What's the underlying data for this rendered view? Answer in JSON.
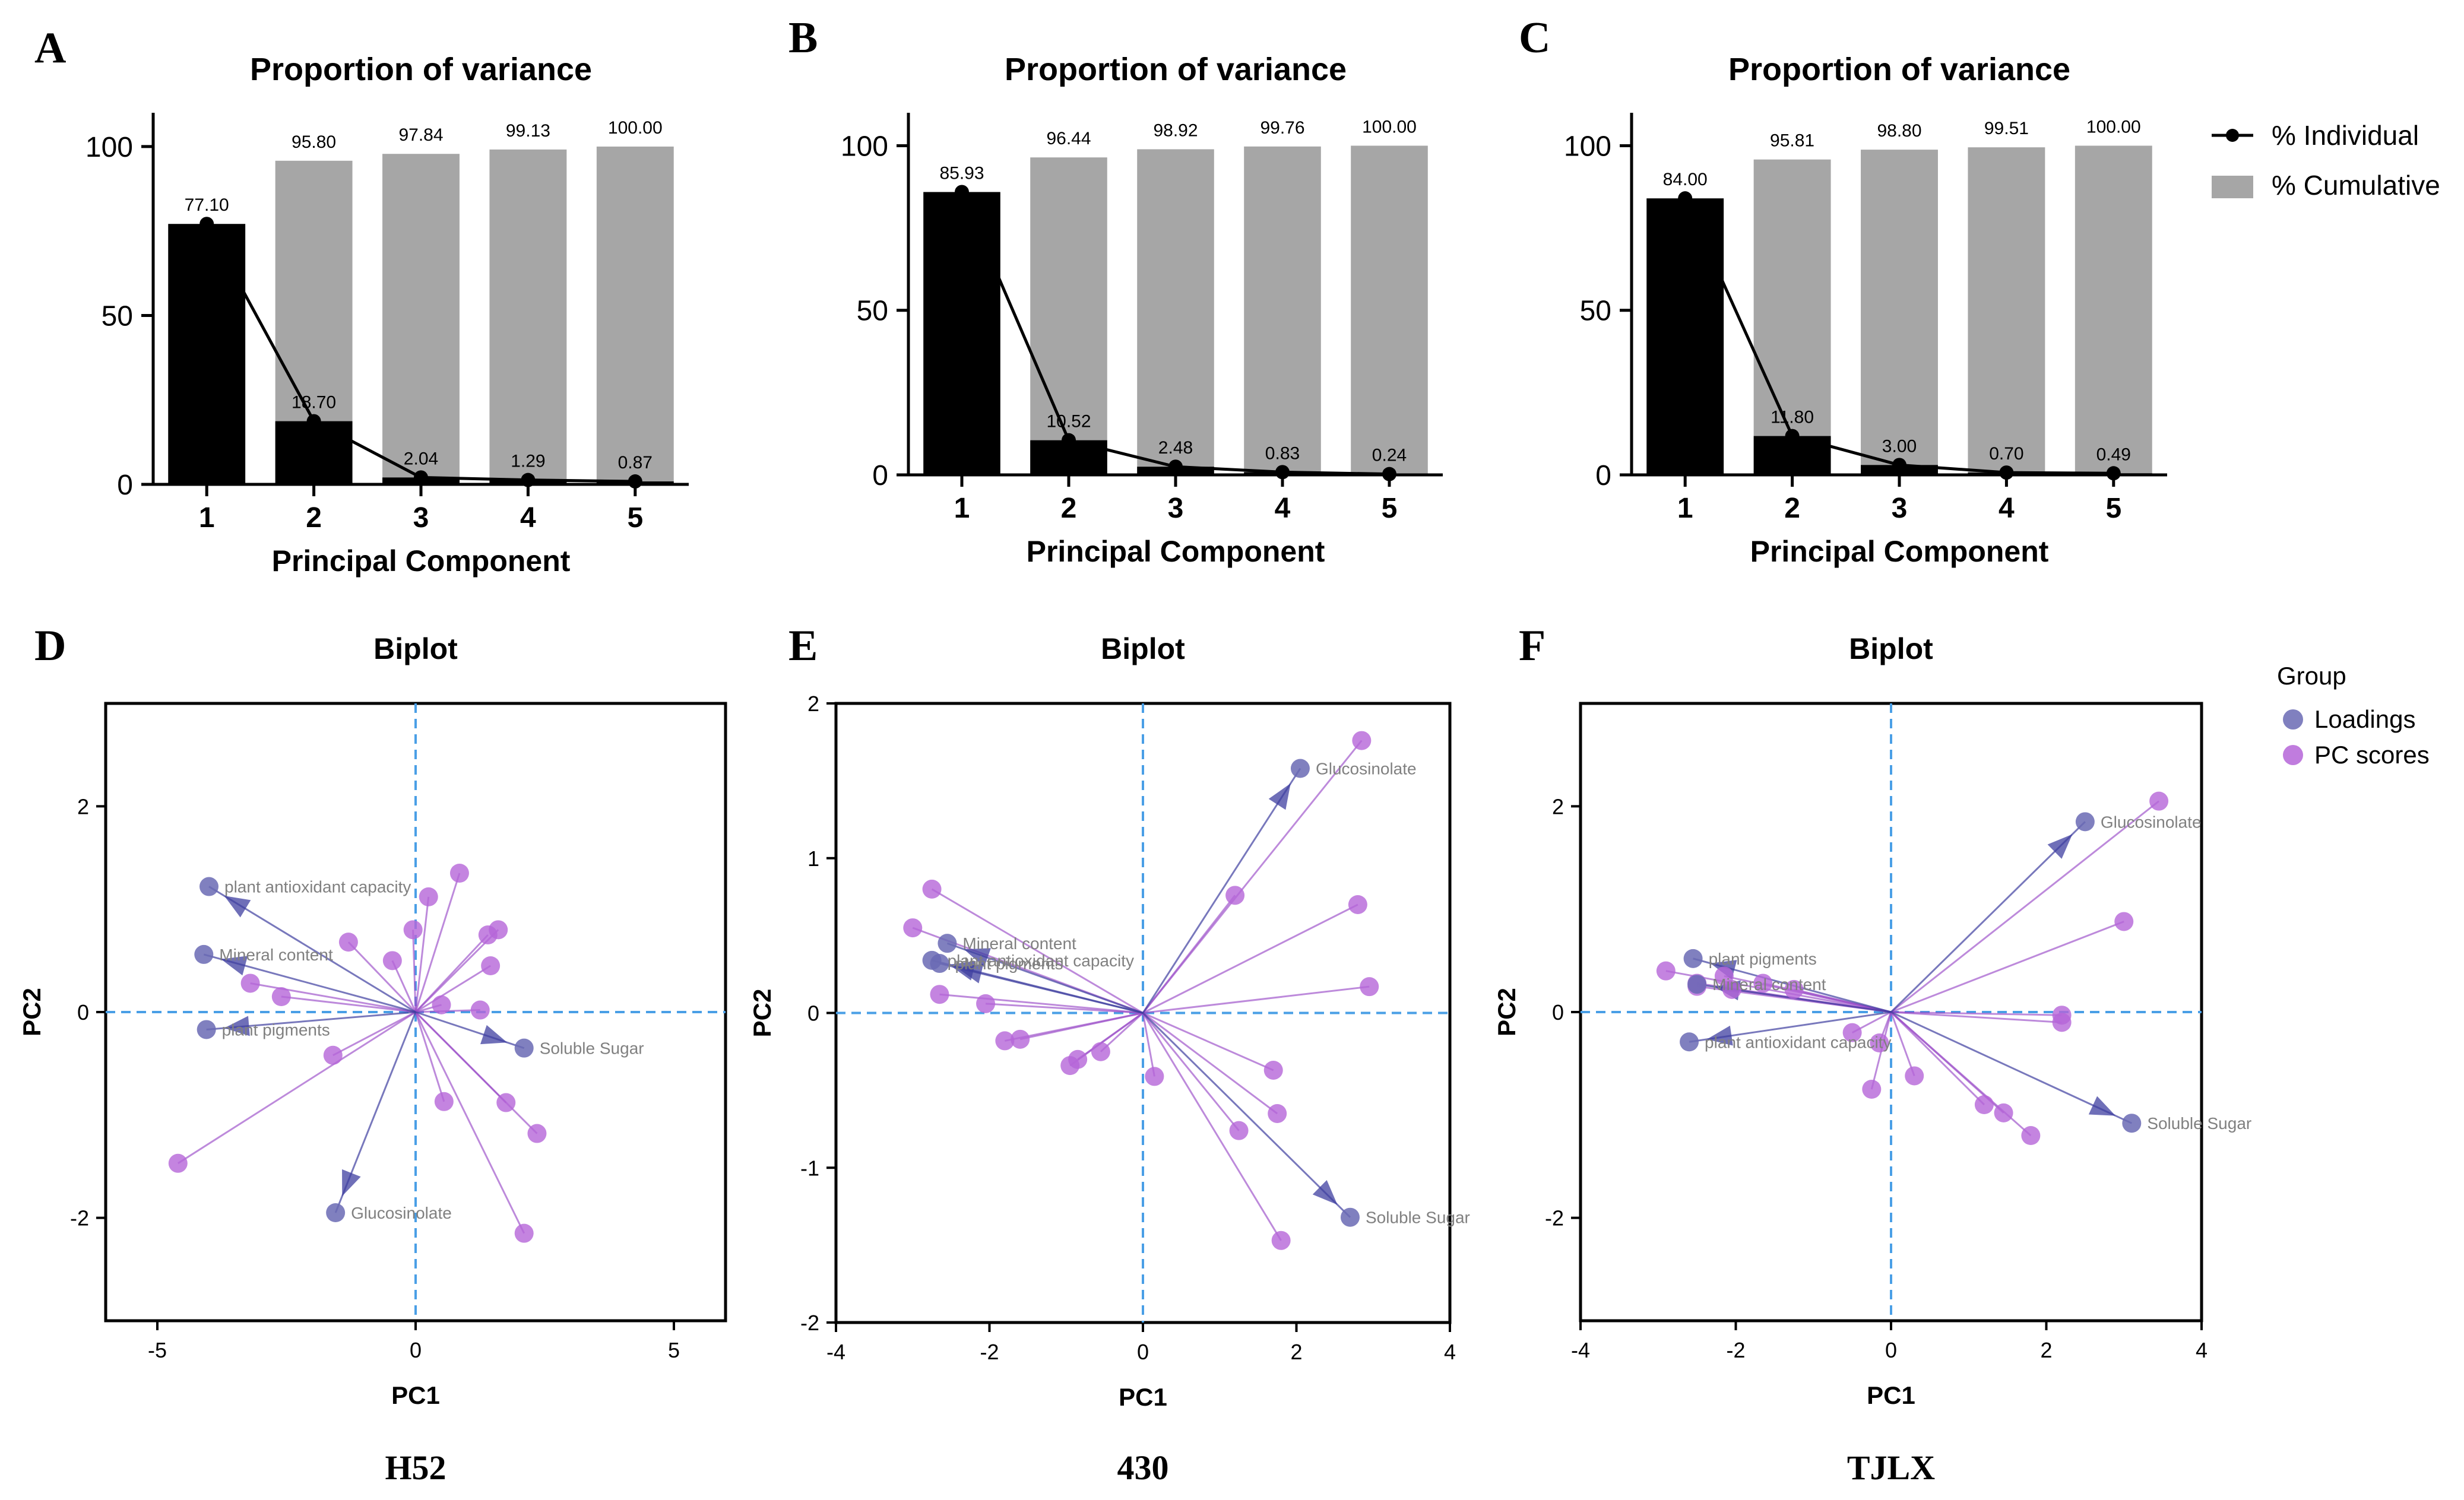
{
  "colors": {
    "bar_individual": "#000000",
    "bar_cumulative": "#a6a6a6",
    "loading": "#6a6ab4",
    "loading_arrow": "#3f3fa0",
    "score": "#b565d8",
    "score_line": "#9a4cc8",
    "zero_line": "#4a9fe6",
    "label_gray": "#808080"
  },
  "legend_variance": {
    "individual": "% Individual",
    "cumulative": "% Cumulative"
  },
  "legend_biplot": {
    "title": "Group",
    "loadings": "Loadings",
    "scores": "PC scores"
  },
  "chart_data": [
    {
      "panel": "A",
      "type": "bar",
      "title": "Proportion of variance",
      "xlabel": "Principal Component",
      "ylabel": "",
      "categories": [
        "1",
        "2",
        "3",
        "4",
        "5"
      ],
      "ylim": [
        0,
        110
      ],
      "yticks": [
        0,
        50,
        100
      ],
      "series": [
        {
          "name": "% Individual",
          "values": [
            77.1,
            18.7,
            2.04,
            1.29,
            0.87
          ],
          "labels": [
            "77.10",
            "18.70",
            "2.04",
            "1.29",
            "0.87"
          ]
        },
        {
          "name": "% Cumulative",
          "values": [
            77.1,
            95.8,
            97.84,
            99.13,
            100.0
          ],
          "labels": [
            "",
            "95.80",
            "97.84",
            "99.13",
            "100.00"
          ]
        }
      ]
    },
    {
      "panel": "B",
      "type": "bar",
      "title": "Proportion of variance",
      "xlabel": "Principal Component",
      "ylabel": "",
      "categories": [
        "1",
        "2",
        "3",
        "4",
        "5"
      ],
      "ylim": [
        0,
        110
      ],
      "yticks": [
        0,
        50,
        100
      ],
      "series": [
        {
          "name": "% Individual",
          "values": [
            85.93,
            10.52,
            2.48,
            0.83,
            0.24
          ],
          "labels": [
            "85.93",
            "10.52",
            "2.48",
            "0.83",
            "0.24"
          ]
        },
        {
          "name": "% Cumulative",
          "values": [
            85.93,
            96.44,
            98.92,
            99.76,
            100.0
          ],
          "labels": [
            "",
            "96.44",
            "98.92",
            "99.76",
            "100.00"
          ]
        }
      ]
    },
    {
      "panel": "C",
      "type": "bar",
      "title": "Proportion of variance",
      "xlabel": "Principal Component",
      "ylabel": "",
      "categories": [
        "1",
        "2",
        "3",
        "4",
        "5"
      ],
      "ylim": [
        0,
        110
      ],
      "yticks": [
        0,
        50,
        100
      ],
      "series": [
        {
          "name": "% Individual",
          "values": [
            84.0,
            11.8,
            3.0,
            0.7,
            0.49
          ],
          "labels": [
            "84.00",
            "11.80",
            "3.00",
            "0.70",
            "0.49"
          ]
        },
        {
          "name": "% Cumulative",
          "values": [
            84.0,
            95.81,
            98.8,
            99.51,
            100.0
          ],
          "labels": [
            "",
            "95.81",
            "98.80",
            "99.51",
            "100.00"
          ]
        }
      ]
    },
    {
      "panel": "D",
      "type": "scatter",
      "title": "Biplot",
      "xlabel": "PC1",
      "ylabel": "PC2",
      "caption": "H52",
      "xlim": [
        -6,
        6
      ],
      "ylim": [
        -3,
        3
      ],
      "xticks": [
        -5,
        0,
        5
      ],
      "yticks": [
        -2,
        0,
        2
      ],
      "loadings": [
        {
          "name": "plant antioxidant capacity",
          "x": -4.0,
          "y": 1.22
        },
        {
          "name": "Mineral content",
          "x": -4.1,
          "y": 0.56
        },
        {
          "name": "plant pigments",
          "x": -4.05,
          "y": -0.17
        },
        {
          "name": "Soluble Sugar",
          "x": 2.1,
          "y": -0.35
        },
        {
          "name": "Glucosinolate",
          "x": -1.55,
          "y": -1.95
        }
      ],
      "scores": [
        {
          "x": -4.6,
          "y": -1.47
        },
        {
          "x": -3.2,
          "y": 0.28
        },
        {
          "x": -2.6,
          "y": 0.15
        },
        {
          "x": -1.3,
          "y": 0.68
        },
        {
          "x": -1.6,
          "y": -0.42
        },
        {
          "x": -0.45,
          "y": 0.5
        },
        {
          "x": -0.05,
          "y": 0.8
        },
        {
          "x": 0.25,
          "y": 1.12
        },
        {
          "x": 0.85,
          "y": 1.35
        },
        {
          "x": 0.5,
          "y": 0.07
        },
        {
          "x": 0.55,
          "y": -0.87
        },
        {
          "x": 1.25,
          "y": 0.02
        },
        {
          "x": 1.4,
          "y": 0.75
        },
        {
          "x": 1.6,
          "y": 0.8
        },
        {
          "x": 1.45,
          "y": 0.45
        },
        {
          "x": 1.75,
          "y": -0.88
        },
        {
          "x": 2.35,
          "y": -1.18
        },
        {
          "x": 2.1,
          "y": -2.15
        }
      ]
    },
    {
      "panel": "E",
      "type": "scatter",
      "title": "Biplot",
      "xlabel": "PC1",
      "ylabel": "PC2",
      "caption": "430",
      "xlim": [
        -4,
        4
      ],
      "ylim": [
        -2,
        2
      ],
      "xticks": [
        -4,
        -2,
        0,
        2,
        4
      ],
      "yticks": [
        -2,
        -1,
        0,
        1,
        2
      ],
      "loadings": [
        {
          "name": "Glucosinolate",
          "x": 2.05,
          "y": 1.58
        },
        {
          "name": "Mineral content",
          "x": -2.55,
          "y": 0.45
        },
        {
          "name": "plant antioxidant capacity",
          "x": -2.75,
          "y": 0.34
        },
        {
          "name": "plant pigments",
          "x": -2.65,
          "y": 0.32
        },
        {
          "name": "Soluble Sugar",
          "x": 2.7,
          "y": -1.32
        }
      ],
      "scores": [
        {
          "x": 2.85,
          "y": 1.76
        },
        {
          "x": 2.8,
          "y": 0.7
        },
        {
          "x": 2.95,
          "y": 0.17
        },
        {
          "x": 1.2,
          "y": 0.76
        },
        {
          "x": -2.75,
          "y": 0.8
        },
        {
          "x": -3.0,
          "y": 0.55
        },
        {
          "x": -2.65,
          "y": 0.12
        },
        {
          "x": -2.05,
          "y": 0.06
        },
        {
          "x": -1.8,
          "y": -0.18
        },
        {
          "x": -1.6,
          "y": -0.17
        },
        {
          "x": -0.95,
          "y": -0.34
        },
        {
          "x": -0.85,
          "y": -0.3
        },
        {
          "x": -0.55,
          "y": -0.25
        },
        {
          "x": 0.15,
          "y": -0.41
        },
        {
          "x": 1.7,
          "y": -0.37
        },
        {
          "x": 1.75,
          "y": -0.65
        },
        {
          "x": 1.25,
          "y": -0.76
        },
        {
          "x": 1.8,
          "y": -1.47
        }
      ]
    },
    {
      "panel": "F",
      "type": "scatter",
      "title": "Biplot",
      "xlabel": "PC1",
      "ylabel": "PC2",
      "caption": "TJLX",
      "xlim": [
        -4,
        4
      ],
      "ylim": [
        -3,
        3
      ],
      "xticks": [
        -4,
        -2,
        0,
        2,
        4
      ],
      "yticks": [
        -2,
        0,
        2
      ],
      "loadings": [
        {
          "name": "Glucosinolate",
          "x": 2.5,
          "y": 1.85
        },
        {
          "name": "plant pigments",
          "x": -2.55,
          "y": 0.52
        },
        {
          "name": "Mineral content",
          "x": -2.5,
          "y": 0.27
        },
        {
          "name": "plant antioxidant capacity",
          "x": -2.6,
          "y": -0.29
        },
        {
          "name": "Soluble Sugar",
          "x": 3.1,
          "y": -1.08
        }
      ],
      "scores": [
        {
          "x": 3.45,
          "y": 2.05
        },
        {
          "x": 3.0,
          "y": 0.88
        },
        {
          "x": 2.2,
          "y": -0.03
        },
        {
          "x": 2.2,
          "y": -0.1
        },
        {
          "x": -2.9,
          "y": 0.4
        },
        {
          "x": -2.5,
          "y": 0.28
        },
        {
          "x": -2.15,
          "y": 0.35
        },
        {
          "x": -2.05,
          "y": 0.22
        },
        {
          "x": -1.65,
          "y": 0.28
        },
        {
          "x": -1.25,
          "y": 0.22
        },
        {
          "x": -0.5,
          "y": -0.2
        },
        {
          "x": -0.25,
          "y": -0.75
        },
        {
          "x": -0.15,
          "y": -0.3
        },
        {
          "x": 0.3,
          "y": -0.62
        },
        {
          "x": 1.2,
          "y": -0.9
        },
        {
          "x": 1.45,
          "y": -0.98
        },
        {
          "x": 1.8,
          "y": -1.2
        },
        {
          "x": -2.5,
          "y": 0.25
        }
      ]
    }
  ]
}
